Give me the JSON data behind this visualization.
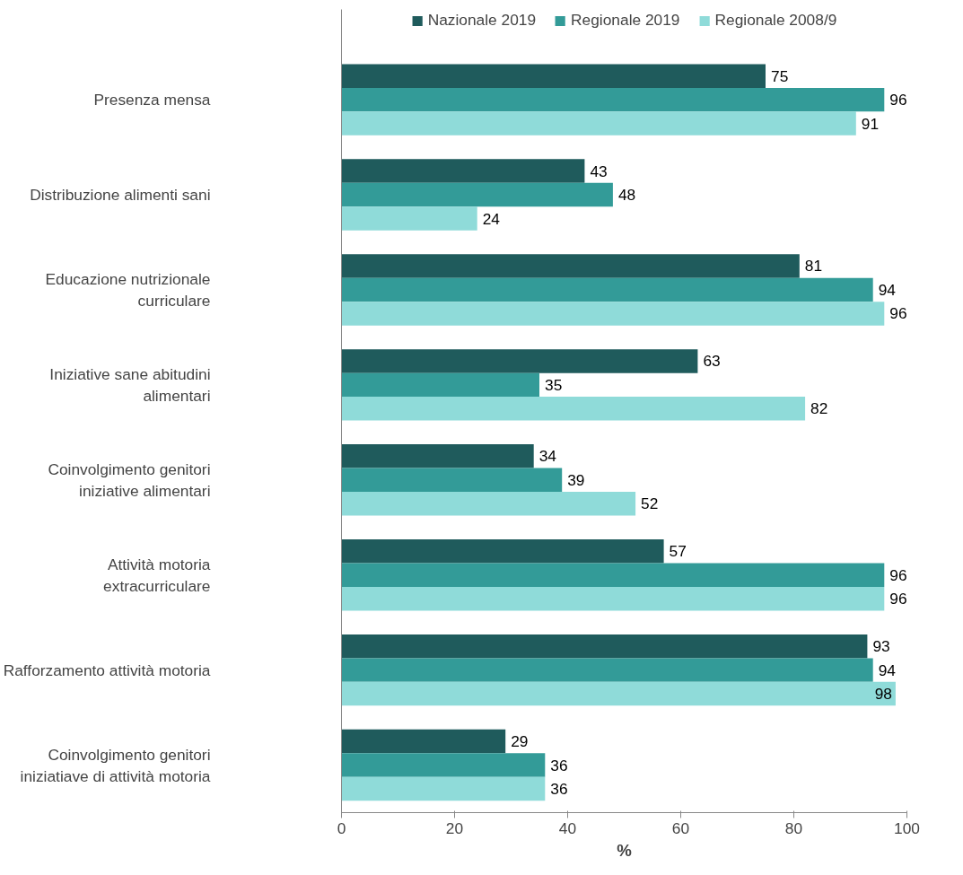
{
  "chart_data": {
    "type": "bar",
    "orientation": "horizontal",
    "xlabel": "%",
    "categories": [
      "Presenza mensa",
      "Distribuzione alimenti sani",
      "Educazione nutrizionale curriculare",
      "Iniziative sane abitudini alimentari",
      "Coinvolgimento genitori iniziative alimentari",
      "Attività motoria extracurriculare",
      "Rafforzamento attività motoria",
      "Coinvolgimento genitori iniziatiave di attività motoria"
    ],
    "series": [
      {
        "name": "Nazionale 2019",
        "color": "#1f5b5c",
        "values": [
          75,
          43,
          81,
          63,
          34,
          57,
          93,
          29
        ]
      },
      {
        "name": "Regionale 2019",
        "color": "#339b98",
        "values": [
          96,
          48,
          94,
          35,
          39,
          96,
          94,
          36
        ]
      },
      {
        "name": "Regionale 2008/9",
        "color": "#8fdbd9",
        "values": [
          91,
          24,
          96,
          82,
          52,
          96,
          98,
          36
        ]
      }
    ],
    "xlim": [
      0,
      100
    ],
    "xticks": [
      0,
      20,
      40,
      60,
      80,
      100
    ],
    "grid": false,
    "legend": "top",
    "data_labels": true
  }
}
